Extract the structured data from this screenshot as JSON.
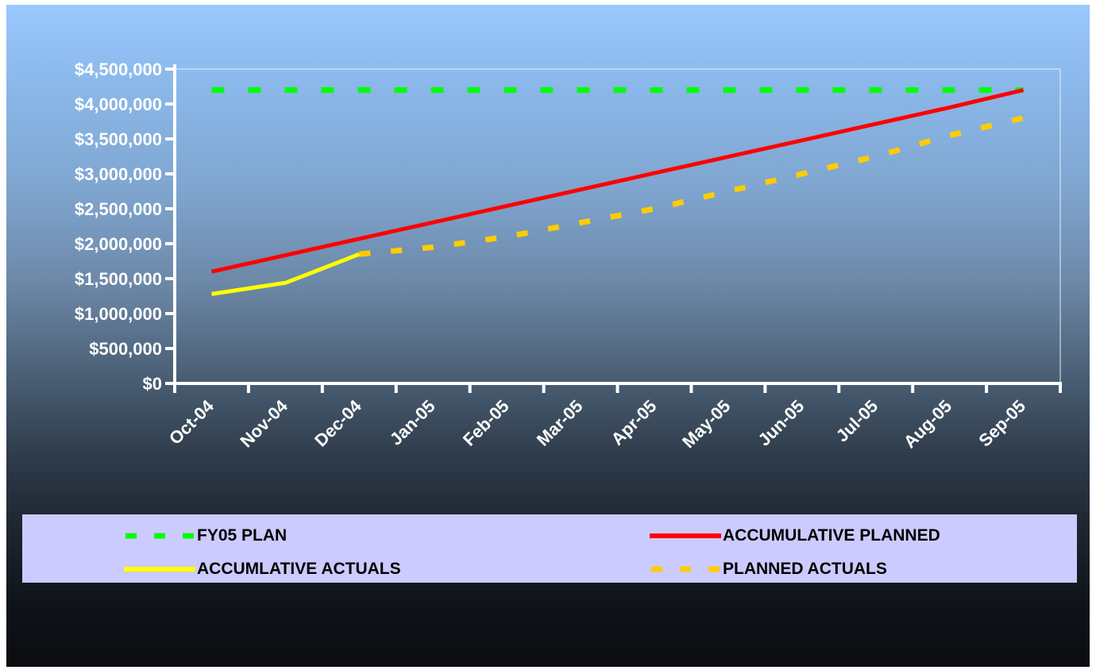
{
  "colors": {
    "fy05_plan": "#00ff00",
    "accumulative_planned": "#ff0000",
    "accumulative_actuals": "#ffff00",
    "planned_actuals": "#ffcc00",
    "legend_background": "#cccbff",
    "text": "#ffffff"
  },
  "chart_data": {
    "type": "line",
    "title": "",
    "xlabel": "",
    "ylabel": "",
    "categories": [
      "Oct-04",
      "Nov-04",
      "Dec-04",
      "Jan-05",
      "Feb-05",
      "Mar-05",
      "Apr-05",
      "May-05",
      "Jun-05",
      "Jul-05",
      "Aug-05",
      "Sep-05"
    ],
    "ylim": [
      0,
      4500000
    ],
    "y_ticks": [
      0,
      500000,
      1000000,
      1500000,
      2000000,
      2500000,
      3000000,
      3500000,
      4000000,
      4500000
    ],
    "y_tick_labels": [
      "$0",
      "$500,000",
      "$1,000,000",
      "$1,500,000",
      "$2,000,000",
      "$2,500,000",
      "$3,000,000",
      "$3,500,000",
      "$4,000,000",
      "$4,500,000"
    ],
    "grid": false,
    "legend_position": "bottom",
    "series": [
      {
        "name": "FY05 PLAN",
        "style": "dashed",
        "color": "#00ff00",
        "values": [
          4200000,
          4200000,
          4200000,
          4200000,
          4200000,
          4200000,
          4200000,
          4200000,
          4200000,
          4200000,
          4200000,
          4200000
        ]
      },
      {
        "name": "ACCUMULATIVE PLANNED",
        "style": "solid",
        "color": "#ff0000",
        "values": [
          1600000,
          1835000,
          2070000,
          2305000,
          2540000,
          2775000,
          3010000,
          3245000,
          3480000,
          3715000,
          3950000,
          4200000
        ]
      },
      {
        "name": "ACCUMLATIVE ACTUALS",
        "style": "solid",
        "color": "#ffff00",
        "values": [
          1280000,
          1440000,
          1850000,
          null,
          null,
          null,
          null,
          null,
          null,
          null,
          null,
          null
        ]
      },
      {
        "name": "PLANNED ACTUALS",
        "style": "dashed",
        "color": "#ffcc00",
        "values": [
          null,
          null,
          1850000,
          1950000,
          2100000,
          2300000,
          2500000,
          2750000,
          3000000,
          3250000,
          3550000,
          3800000
        ]
      }
    ]
  },
  "legend": {
    "items": [
      {
        "label": "FY05 PLAN"
      },
      {
        "label": "ACCUMULATIVE PLANNED"
      },
      {
        "label": "ACCUMLATIVE ACTUALS"
      },
      {
        "label": "PLANNED ACTUALS"
      }
    ]
  }
}
